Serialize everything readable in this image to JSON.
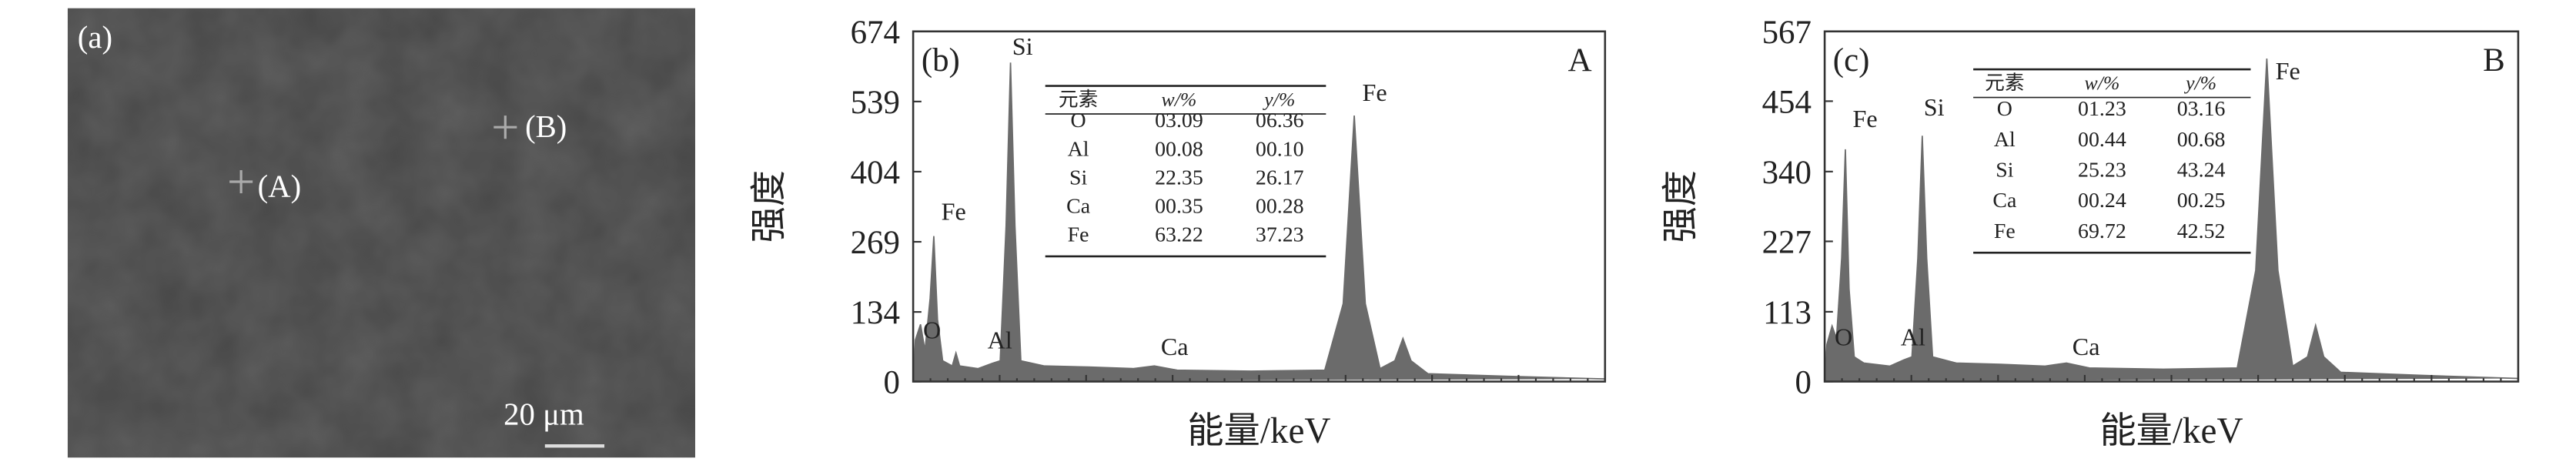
{
  "image": {
    "label": "(a)",
    "markers": [
      "(A)",
      "(B)"
    ],
    "scale_bar": "20 μm"
  },
  "chart_data": [
    {
      "type": "area",
      "panel": "(b)",
      "corner_label": "A",
      "ylabel": "强度",
      "xlabel": "能量/keV",
      "color": "#6b6b6b",
      "xlim": [
        0.42,
        9.8
      ],
      "ylim": [
        0,
        674
      ],
      "yticks": [
        0,
        134,
        269,
        404,
        539,
        674
      ],
      "x": [
        0.42,
        0.45,
        0.52,
        0.58,
        0.65,
        0.7,
        0.75,
        0.82,
        0.95,
        1.0,
        1.05,
        1.3,
        1.49,
        1.6,
        1.68,
        1.74,
        1.8,
        1.88,
        2.2,
        2.8,
        3.4,
        3.69,
        4.0,
        5.0,
        6.0,
        6.25,
        6.4,
        6.55,
        6.75,
        6.95,
        7.06,
        7.17,
        7.4,
        8.5,
        9.8
      ],
      "values": [
        0,
        80,
        110,
        60,
        160,
        280,
        120,
        40,
        30,
        55,
        30,
        25,
        35,
        40,
        300,
        614,
        300,
        40,
        30,
        28,
        25,
        30,
        22,
        20,
        22,
        150,
        512,
        150,
        25,
        40,
        83,
        40,
        15,
        10,
        5
      ],
      "peak_labels": [
        "O",
        "Fe",
        "Al",
        "Si",
        "Ca",
        "Fe"
      ],
      "table": {
        "headers": [
          "元素",
          "w/%",
          "y/%"
        ],
        "rows": [
          [
            "O",
            "03.09",
            "06.36"
          ],
          [
            "Al",
            "00.08",
            "00.10"
          ],
          [
            "Si",
            "22.35",
            "26.17"
          ],
          [
            "Ca",
            "00.35",
            "00.28"
          ],
          [
            "Fe",
            "63.22",
            "37.23"
          ]
        ]
      }
    },
    {
      "type": "area",
      "panel": "(c)",
      "corner_label": "B",
      "ylabel": "强度",
      "xlabel": "能量/keV",
      "color": "#6b6b6b",
      "xlim": [
        0.42,
        9.8
      ],
      "ylim": [
        0,
        567
      ],
      "yticks": [
        0,
        113,
        227,
        340,
        454,
        567
      ],
      "x": [
        0.42,
        0.45,
        0.52,
        0.58,
        0.65,
        0.7,
        0.75,
        0.82,
        0.95,
        1.3,
        1.49,
        1.6,
        1.68,
        1.74,
        1.8,
        1.88,
        2.2,
        2.8,
        3.4,
        3.69,
        4.0,
        5.0,
        6.0,
        6.25,
        6.4,
        6.55,
        6.75,
        6.95,
        7.06,
        7.17,
        7.4,
        8.5,
        9.8
      ],
      "values": [
        0,
        60,
        90,
        70,
        200,
        376,
        150,
        40,
        30,
        25,
        35,
        40,
        200,
        398,
        200,
        40,
        30,
        28,
        25,
        30,
        22,
        20,
        22,
        180,
        523,
        180,
        25,
        40,
        91,
        40,
        15,
        10,
        5
      ],
      "peak_labels": [
        "O",
        "Fe",
        "Al",
        "Si",
        "Ca",
        "Fe"
      ],
      "table": {
        "headers": [
          "元素",
          "w/%",
          "y/%"
        ],
        "rows": [
          [
            "O",
            "01.23",
            "03.16"
          ],
          [
            "Al",
            "00.44",
            "00.68"
          ],
          [
            "Si",
            "25.23",
            "43.24"
          ],
          [
            "Ca",
            "00.24",
            "00.25"
          ],
          [
            "Fe",
            "69.72",
            "42.52"
          ]
        ]
      }
    }
  ]
}
